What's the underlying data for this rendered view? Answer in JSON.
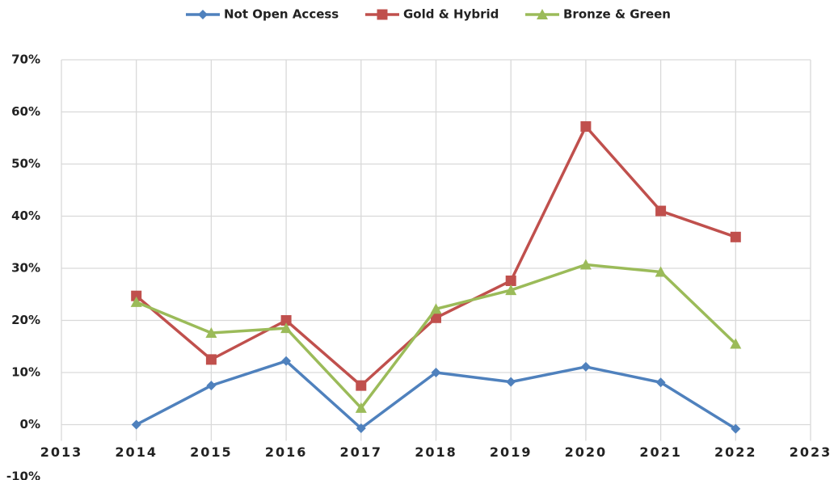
{
  "chart_data": {
    "type": "line",
    "x": [
      2014,
      2015,
      2016,
      2017,
      2018,
      2019,
      2020,
      2021,
      2022
    ],
    "series": [
      {
        "name": "Not Open Access",
        "color": "#4f81bd",
        "marker": "diamond",
        "values": [
          0,
          7.5,
          12.2,
          -0.7,
          10,
          8.2,
          11.1,
          8.1,
          -0.8
        ]
      },
      {
        "name": "Gold & Hybrid",
        "color": "#c0504d",
        "marker": "square",
        "values": [
          24.7,
          12.5,
          20,
          7.5,
          20.5,
          27.6,
          57.2,
          41,
          36
        ]
      },
      {
        "name": "Bronze & Green",
        "color": "#9bbb59",
        "marker": "triangle",
        "values": [
          23.5,
          17.6,
          18.5,
          3.2,
          22.2,
          25.8,
          30.7,
          29.3,
          15.5
        ]
      }
    ],
    "xlim": [
      2013,
      2023
    ],
    "xticks": [
      2013,
      2014,
      2015,
      2016,
      2017,
      2018,
      2019,
      2020,
      2021,
      2022,
      2023
    ],
    "ylim": [
      -10,
      70
    ],
    "yticks": [
      {
        "value": -10,
        "label": "-10%"
      },
      {
        "value": 0,
        "label": "0%"
      },
      {
        "value": 10,
        "label": "10%"
      },
      {
        "value": 20,
        "label": "20%"
      },
      {
        "value": 30,
        "label": "30%"
      },
      {
        "value": 40,
        "label": "40%"
      },
      {
        "value": 50,
        "label": "50%"
      },
      {
        "value": 60,
        "label": "60%"
      },
      {
        "value": 70,
        "label": "70%"
      }
    ],
    "grid": true,
    "legend": "top"
  }
}
